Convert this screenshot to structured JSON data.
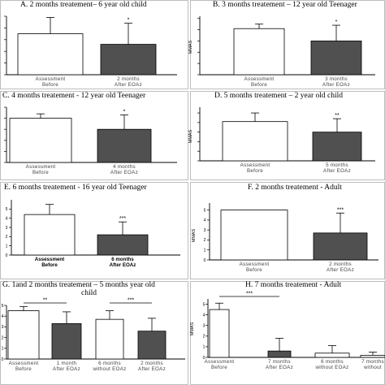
{
  "chart_data": [
    {
      "type": "bar",
      "panel": "A.",
      "title": "2 months treatement– 6 year old child",
      "ylabel": "",
      "categories": [
        [
          "Assessment",
          "Before"
        ],
        [
          "2 months",
          "After EOAz"
        ]
      ],
      "values": [
        3.5,
        2.6
      ],
      "errors": [
        1.4,
        1.8
      ],
      "ylim": [
        0,
        5
      ],
      "yticks": [],
      "significance": [
        {
          "bar": 1,
          "text": "*"
        }
      ],
      "colors": [
        "#ffffff",
        "#505050"
      ]
    },
    {
      "type": "bar",
      "panel": "B.",
      "title": "3 months treatement – 12 year old Teenager",
      "ylabel": "MMAS",
      "categories": [
        [
          "Assessment",
          "Before"
        ],
        [
          "3 months",
          "After EOAz"
        ]
      ],
      "values": [
        4.1,
        3.0
      ],
      "errors": [
        0.4,
        1.4
      ],
      "ylim": [
        0,
        5.2
      ],
      "yticks": [],
      "significance": [
        {
          "bar": 1,
          "text": "*"
        }
      ],
      "colors": [
        "#ffffff",
        "#505050"
      ]
    },
    {
      "type": "bar",
      "panel": "C.",
      "title": "4 months treatement - 12 year old Teenager",
      "ylabel": "",
      "categories": [
        [
          "Assessment",
          "Before"
        ],
        [
          "4 months",
          "After EOAz"
        ]
      ],
      "values": [
        4.0,
        3.0
      ],
      "errors": [
        0.4,
        1.3
      ],
      "ylim": [
        0,
        5
      ],
      "yticks": [],
      "significance": [
        {
          "bar": 1,
          "text": "*"
        }
      ],
      "colors": [
        "#ffffff",
        "#505050"
      ]
    },
    {
      "type": "bar",
      "panel": "D.",
      "title": "5 months treatement – 2 year old child",
      "ylabel": "MMAS",
      "categories": [
        [
          "Assessment",
          "Before"
        ],
        [
          "5 months",
          "After EOAz"
        ]
      ],
      "values": [
        4.1,
        3.0
      ],
      "errors": [
        0.9,
        1.4
      ],
      "ylim": [
        0,
        5.6
      ],
      "yticks": [],
      "significance": [
        {
          "bar": 1,
          "text": "**"
        }
      ],
      "colors": [
        "#ffffff",
        "#505050"
      ]
    },
    {
      "type": "bar",
      "panel": "E.",
      "title": "6 months treatement - 16 year old Teenager",
      "ylabel": "",
      "categories": [
        [
          "Assessment",
          "Before"
        ],
        [
          "6 months",
          "After EOAz"
        ]
      ],
      "values": [
        4.4,
        2.2
      ],
      "errors": [
        1.1,
        1.4
      ],
      "ylim": [
        0,
        6
      ],
      "yticks": [
        0,
        1,
        2,
        3,
        4,
        5
      ],
      "bold_categories": true,
      "significance": [
        {
          "bar": 1,
          "text": "***"
        }
      ],
      "colors": [
        "#ffffff",
        "#505050"
      ]
    },
    {
      "type": "bar",
      "panel": "F.",
      "title": "2 months treatement - Adult",
      "ylabel": "MMAS",
      "categories": [
        [
          "Assessment",
          "Before"
        ],
        [
          "2 months",
          "After EOAz"
        ]
      ],
      "values": [
        5.0,
        2.7
      ],
      "errors": [
        0,
        2.0
      ],
      "ylim": [
        0,
        5.7
      ],
      "yticks": [
        0,
        1,
        2,
        3,
        4,
        5
      ],
      "significance": [
        {
          "bar": 1,
          "text": "***"
        }
      ],
      "colors": [
        "#ffffff",
        "#505050"
      ]
    },
    {
      "type": "bar",
      "panel": "G.",
      "title": "1and 2 months treatement – 5 months year old child",
      "ylabel": "",
      "categories": [
        [
          "Assessment",
          "Before"
        ],
        [
          "1 month",
          "After EOAz"
        ],
        [
          "6 months",
          "without EOAz"
        ],
        [
          "2 months",
          "After EOAz"
        ]
      ],
      "values": [
        4.5,
        3.3,
        3.7,
        2.6
      ],
      "errors": [
        0.4,
        1.1,
        0.8,
        1.2
      ],
      "ylim": [
        0,
        5
      ],
      "yticks": [
        0,
        1,
        2,
        3,
        4,
        5
      ],
      "significance": [
        {
          "from": 0,
          "to": 1,
          "text": "**"
        },
        {
          "from": 2,
          "to": 3,
          "text": "***"
        }
      ],
      "colors": [
        "#ffffff",
        "#505050",
        "#ffffff",
        "#505050"
      ]
    },
    {
      "type": "bar",
      "panel": "H.",
      "title": "7 months treatement - Adult",
      "ylabel": "MMAS",
      "categories": [
        [
          "Assessment",
          "Before"
        ],
        [
          "7 months",
          "After EOAz"
        ],
        [
          "6 months",
          "without EOAz"
        ],
        [
          "7 months",
          "without"
        ]
      ],
      "values": [
        4.5,
        0.6,
        0.4,
        0.2
      ],
      "errors": [
        0.6,
        1.2,
        0.7,
        0.3
      ],
      "ylim": [
        0,
        5.5
      ],
      "yticks": [
        0,
        1,
        2,
        3,
        4,
        5
      ],
      "significance": [
        {
          "from": 0,
          "to": 1,
          "text": "***"
        }
      ],
      "colors": [
        "#ffffff",
        "#505050",
        "#ffffff",
        "#ffffff"
      ]
    }
  ]
}
